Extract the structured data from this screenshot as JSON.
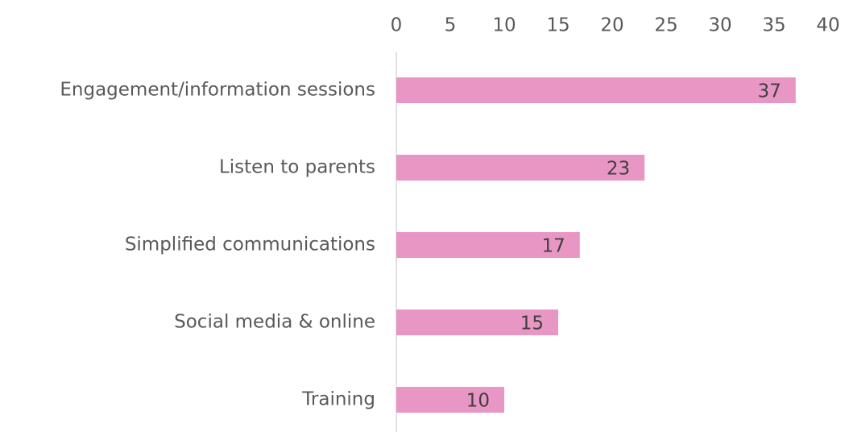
{
  "chart_data": {
    "type": "bar",
    "orientation": "horizontal",
    "categories": [
      "Engagement/information sessions",
      "Listen to parents",
      "Simplified communications",
      "Social media & online",
      "Training"
    ],
    "values": [
      37,
      23,
      17,
      15,
      10
    ],
    "color": "#e897c4",
    "xlim": [
      0,
      40
    ],
    "xticks": [
      0,
      5,
      10,
      15,
      20,
      25,
      30,
      35,
      40
    ],
    "grid": false
  }
}
